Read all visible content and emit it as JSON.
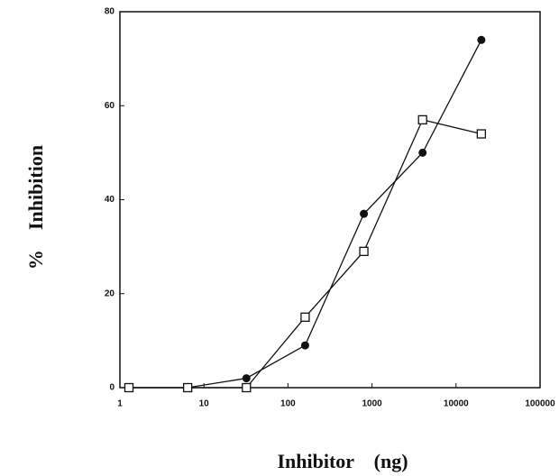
{
  "chart_data": {
    "type": "line",
    "x_label": "Inhibitor    (ng)",
    "y_label": "%    Inhibition",
    "x_scale": "log",
    "xlim": [
      1,
      100000
    ],
    "xticks": [
      1,
      10,
      100,
      1000,
      10000,
      100000
    ],
    "ylim": [
      0,
      80
    ],
    "yticks": [
      0,
      20,
      40,
      60,
      80
    ],
    "series": [
      {
        "color": "#111111",
        "marker": "circle",
        "x": [
          1.28,
          6.4,
          32,
          160,
          800,
          4000,
          20000
        ],
        "values": [
          0,
          0,
          2,
          9,
          37,
          50,
          74
        ]
      },
      {
        "color": "#111111",
        "marker": "square",
        "x": [
          1.28,
          6.4,
          32,
          160,
          800,
          4000,
          20000
        ],
        "values": [
          0,
          0,
          0,
          15,
          29,
          57,
          54
        ]
      }
    ]
  }
}
